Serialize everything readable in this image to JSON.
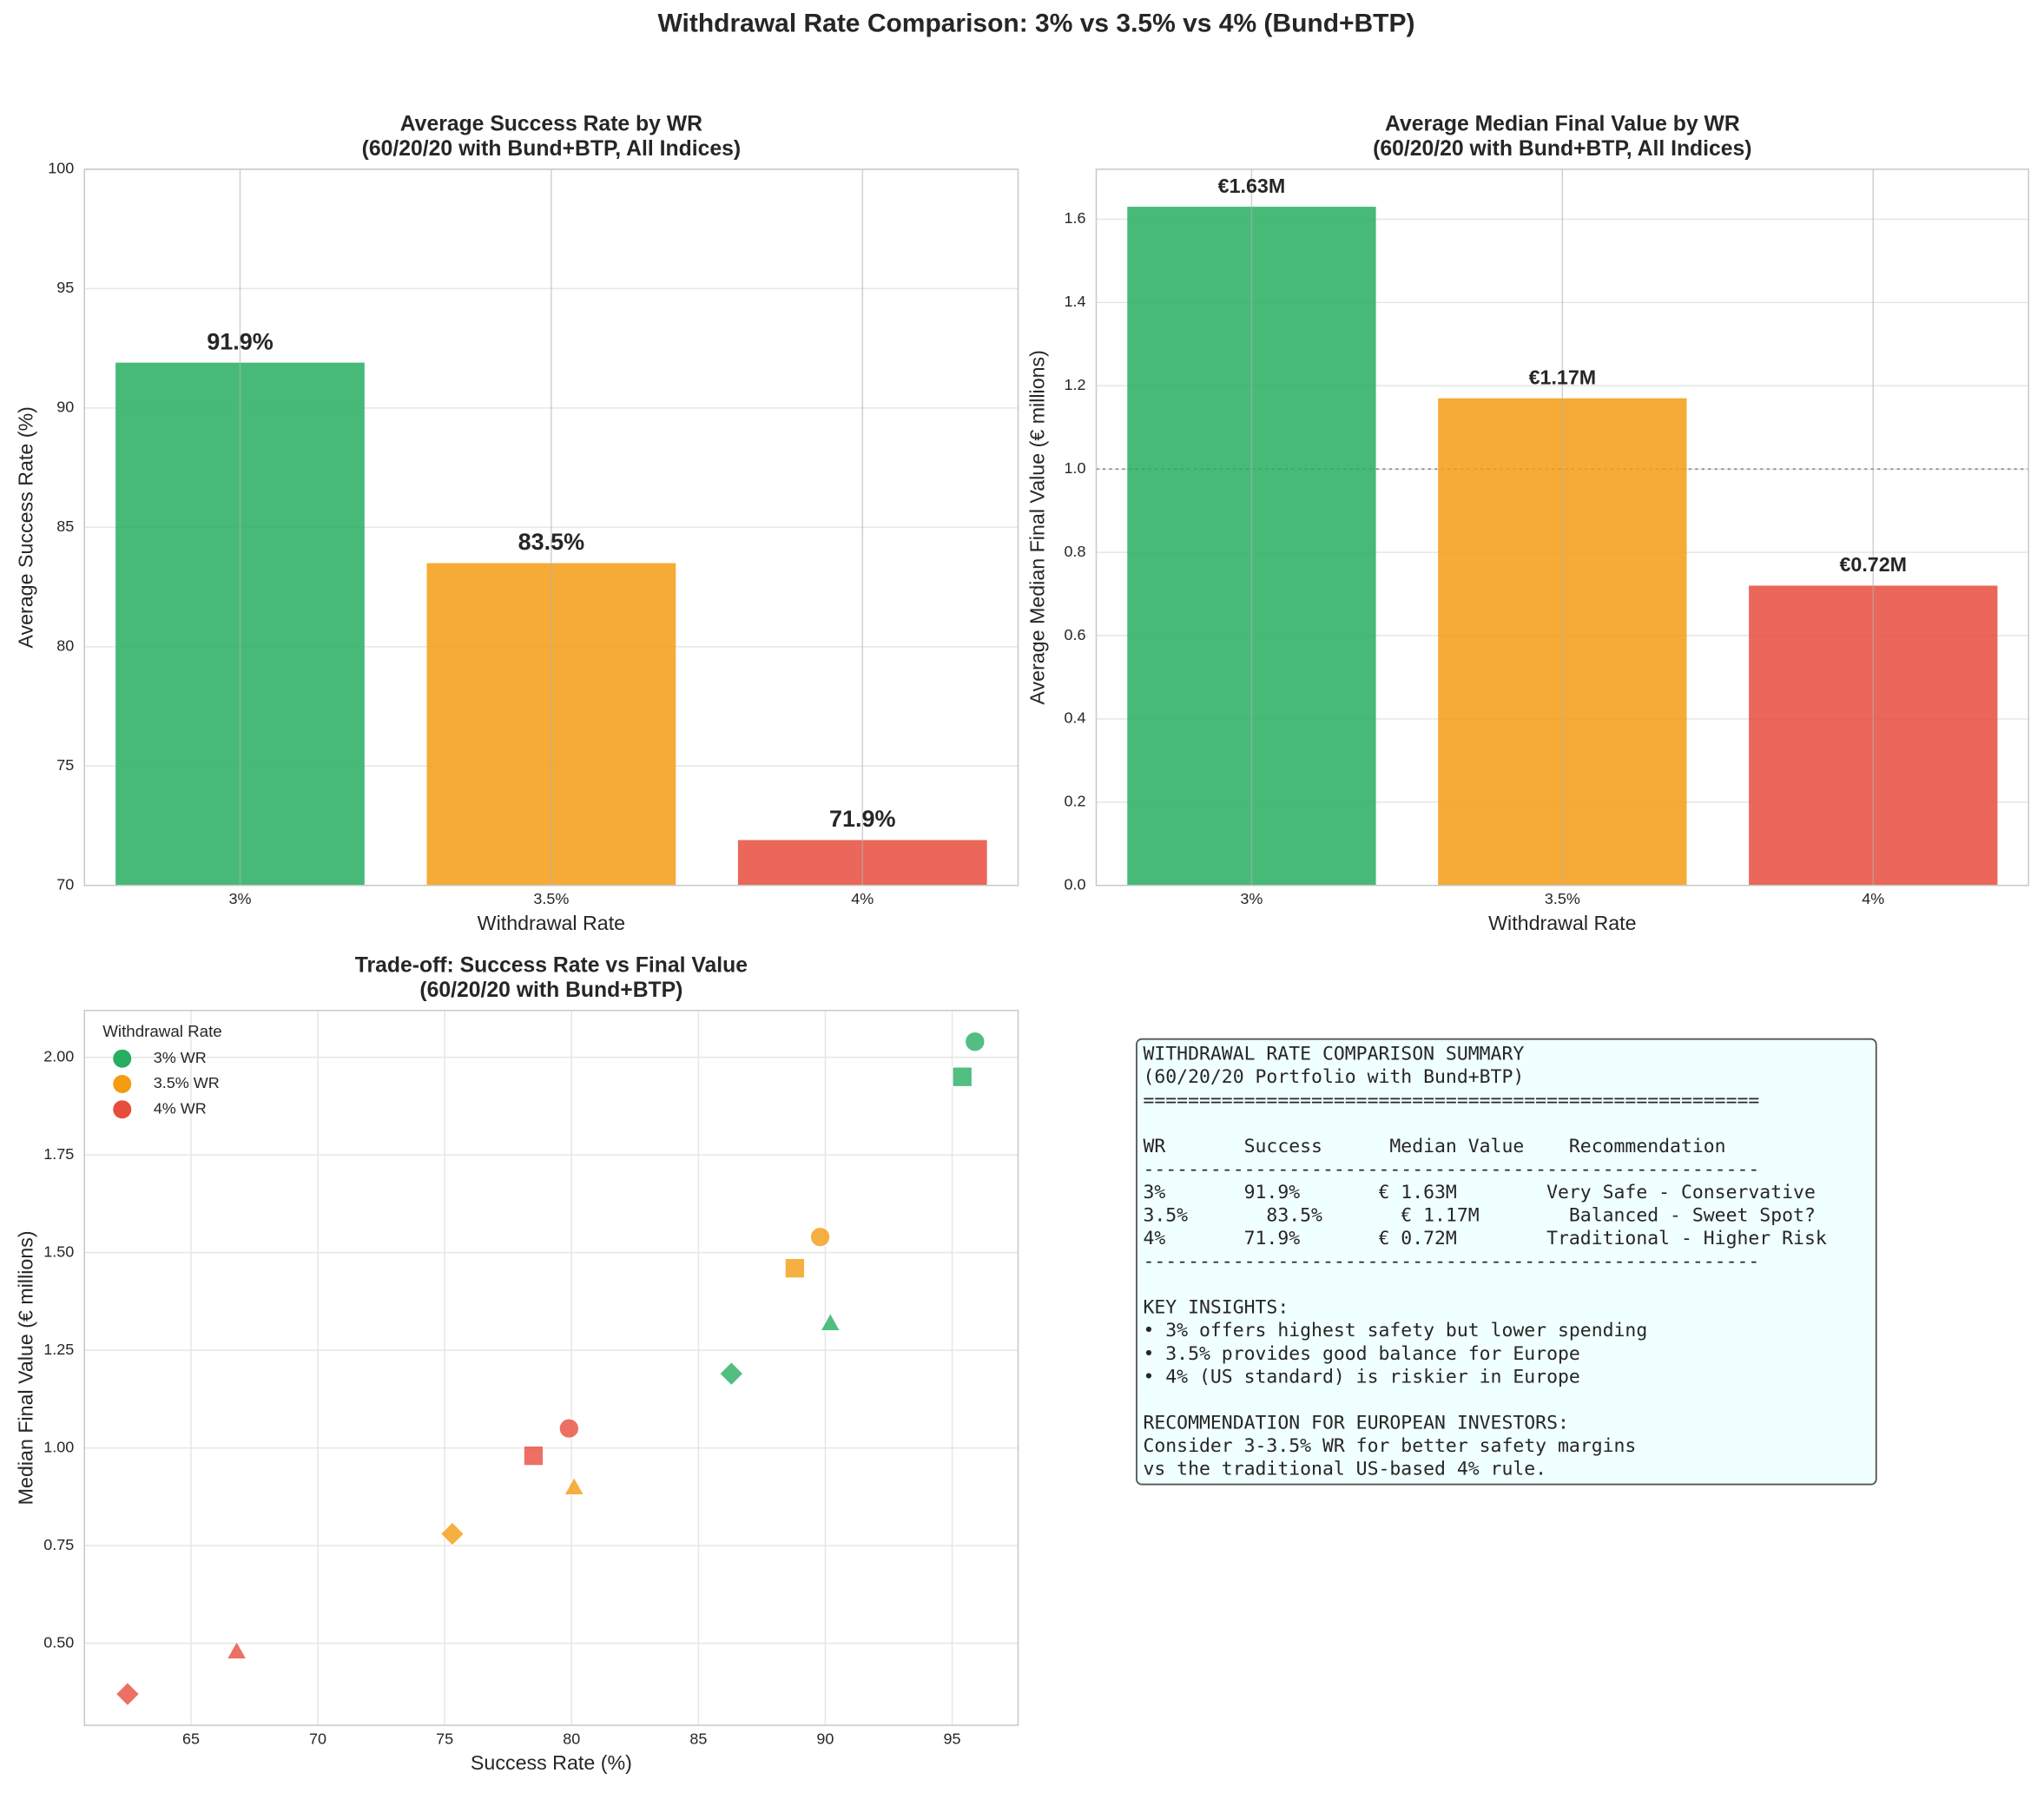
{
  "title": "Withdrawal Rate Comparison: 3% vs 3.5% vs 4% (Bund+BTP)",
  "chart_data": [
    {
      "type": "bar",
      "title": [
        "Average Success Rate by WR",
        "(60/20/20 with Bund+BTP, All Indices)"
      ],
      "x_label": "Withdrawal Rate",
      "y_label": "Average Success Rate (%)",
      "categories": [
        "3%",
        "3.5%",
        "4%"
      ],
      "values": [
        91.9,
        83.5,
        71.9
      ],
      "value_labels": [
        "91.9%",
        "83.5%",
        "71.9%"
      ],
      "colors": [
        "#27ae60",
        "#f39c12",
        "#e74c3c"
      ],
      "ylim": [
        70,
        100
      ],
      "yticks": [
        70,
        75,
        80,
        85,
        90,
        95,
        100
      ],
      "grid": true
    },
    {
      "type": "bar",
      "title": [
        "Average Median Final Value by WR",
        "(60/20/20 with Bund+BTP, All Indices)"
      ],
      "x_label": "Withdrawal Rate",
      "y_label": "Average Median Final Value (€ millions)",
      "categories": [
        "3%",
        "3.5%",
        "4%"
      ],
      "values": [
        1.63,
        1.17,
        0.72
      ],
      "value_labels": [
        "€1.63M",
        "€1.17M",
        "€0.72M"
      ],
      "colors": [
        "#27ae60",
        "#f39c12",
        "#e74c3c"
      ],
      "ylim": [
        0,
        1.72
      ],
      "yticks": [
        {
          "value": 0,
          "label": "0.0"
        },
        0.2,
        0.4,
        0.6,
        0.8,
        {
          "value": 1,
          "label": "1.0"
        },
        1.2,
        1.4,
        1.6
      ],
      "reference_line": 1,
      "grid": true
    },
    {
      "type": "scatter",
      "title": [
        "Trade-off: Success Rate vs Final Value",
        "(60/20/20 with Bund+BTP)"
      ],
      "x_label": "Success Rate (%)",
      "y_label": "Median Final Value (€ millions)",
      "legend_title": "Withdrawal Rate",
      "legend": "upper left",
      "markers": [
        "circle",
        "square",
        "triangle",
        "diamond"
      ],
      "series": [
        {
          "name": "3% WR",
          "color": "#27ae60",
          "x": [
            95.9,
            95.4,
            90.2,
            86.3
          ],
          "values": [
            2.04,
            1.95,
            1.32,
            1.19
          ]
        },
        {
          "name": "3.5% WR",
          "color": "#f39c12",
          "x": [
            89.8,
            88.8,
            80.1,
            75.3
          ],
          "values": [
            1.54,
            1.46,
            0.9,
            0.78
          ]
        },
        {
          "name": "4% WR",
          "color": "#e74c3c",
          "x": [
            79.9,
            78.5,
            66.8,
            62.5
          ],
          "values": [
            1.05,
            0.98,
            0.48,
            0.37
          ]
        }
      ],
      "xlim": [
        60.8,
        97.6
      ],
      "xticks": [
        65,
        70,
        75,
        80,
        85,
        90,
        95
      ],
      "ylim": [
        0.29,
        2.12
      ],
      "yticks": [
        {
          "value": 0.5,
          "label": "0.50"
        },
        {
          "value": 0.75,
          "label": "0.75"
        },
        {
          "value": 1,
          "label": "1.00"
        },
        {
          "value": 1.25,
          "label": "1.25"
        },
        {
          "value": 1.5,
          "label": "1.50"
        },
        {
          "value": 1.75,
          "label": "1.75"
        },
        {
          "value": 2,
          "label": "2.00"
        }
      ],
      "grid": true
    }
  ],
  "summary_box": {
    "lines": [
      "WITHDRAWAL RATE COMPARISON SUMMARY",
      "(60/20/20 Portfolio with Bund+BTP)",
      "=======================================================",
      "",
      "WR       Success      Median Value    Recommendation",
      "-------------------------------------------------------",
      "3%       91.9%       € 1.63M        Very Safe - Conservative",
      "3.5%       83.5%       € 1.17M        Balanced - Sweet Spot?",
      "4%       71.9%       € 0.72M        Traditional - Higher Risk",
      "-------------------------------------------------------",
      "",
      "KEY INSIGHTS:",
      "• 3% offers highest safety but lower spending",
      "• 3.5% provides good balance for Europe",
      "• 4% (US standard) is riskier in Europe",
      "",
      "RECOMMENDATION FOR EUROPEAN INVESTORS:",
      "Consider 3-3.5% WR for better safety margins",
      "vs the traditional US-based 4% rule."
    ]
  }
}
